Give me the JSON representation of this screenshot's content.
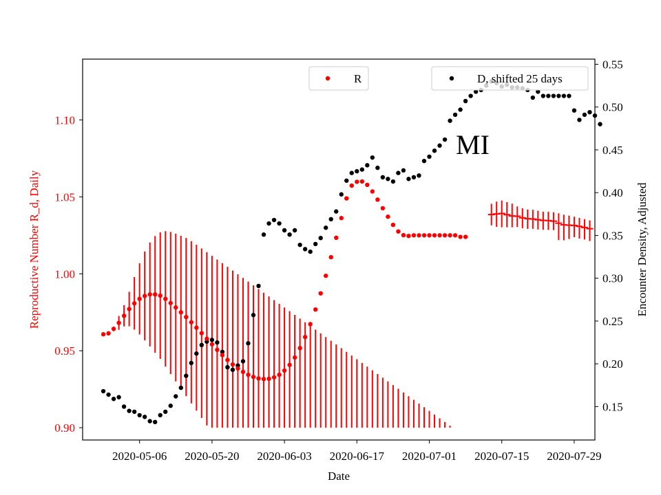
{
  "chart_data": {
    "type": "scatter",
    "annotation": "MI",
    "xlabel": "Date",
    "ylabel_left": "Reproductive Number R_d, Daily",
    "ylabel_right": "Encounter Density, Adjusted",
    "x_start": "2020-04-29",
    "x_range": [
      "2020-04-25",
      "2020-08-02"
    ],
    "ylim_left": [
      0.892,
      1.1395
    ],
    "ylim_right": [
      0.111,
      0.556
    ],
    "x_ticks": [
      "2020-05-06",
      "2020-05-20",
      "2020-06-03",
      "2020-06-17",
      "2020-07-01",
      "2020-07-15",
      "2020-07-29"
    ],
    "yticks_left": [
      "0.90",
      "0.95",
      "1.00",
      "1.05",
      "1.10"
    ],
    "yticks_right": [
      "0.15",
      "0.20",
      "0.25",
      "0.30",
      "0.35",
      "0.40",
      "0.45",
      "0.50",
      "0.55"
    ],
    "legend": [
      {
        "label": "R",
        "position": "top-center"
      },
      {
        "label": "D, shifted 25 days",
        "position": "top-right"
      }
    ],
    "colors": {
      "R": "#ff0000",
      "D": "#000000",
      "axis_left": "#ff0000"
    },
    "series": [
      {
        "name": "R",
        "axis": "left",
        "values": [
          0.9607,
          0.9613,
          0.9642,
          0.9681,
          0.9727,
          0.9771,
          0.9808,
          0.9837,
          0.9856,
          0.9866,
          0.9866,
          0.9858,
          0.9837,
          0.981,
          0.9781,
          0.975,
          0.9719,
          0.9685,
          0.965,
          0.9614,
          0.9578,
          0.9542,
          0.9506,
          0.9472,
          0.944,
          0.9411,
          0.9385,
          0.9363,
          0.9344,
          0.933,
          0.932,
          0.9316,
          0.9318,
          0.9327,
          0.9344,
          0.9371,
          0.9408,
          0.9456,
          0.9517,
          0.9589,
          0.9673,
          0.9768,
          0.9873,
          0.9987,
          1.0108,
          1.0234,
          1.0362,
          1.049,
          1.0573,
          1.0598,
          1.06,
          1.0578,
          1.0535,
          1.0482,
          1.0426,
          1.0371,
          1.0318,
          1.0275,
          1.0251,
          1.0246,
          1.025,
          1.025,
          1.025,
          1.025,
          1.025,
          1.025,
          1.025,
          1.025,
          1.025,
          1.024,
          1.024
        ],
        "err_low": [
          0.9607,
          0.9613,
          0.9627,
          0.9636,
          0.9658,
          0.9659,
          0.9637,
          0.9606,
          0.9567,
          0.9528,
          0.9487,
          0.9447,
          0.9397,
          0.9348,
          0.9301,
          0.9253,
          0.9205,
          0.9158,
          0.9111,
          0.9063,
          0.9015,
          0.9,
          0.9,
          0.9,
          0.9,
          0.9,
          0.9,
          0.9,
          0.9,
          0.9,
          0.9,
          0.9,
          0.9,
          0.9,
          0.9,
          0.9,
          0.9,
          0.9,
          0.9,
          0.9,
          0.9,
          0.9,
          0.9,
          0.9,
          0.9,
          0.9,
          0.9,
          0.9,
          0.9,
          0.9,
          0.9,
          0.9,
          0.9,
          0.9,
          0.9,
          0.9,
          0.9,
          0.9,
          0.9,
          0.9,
          0.9,
          0.9,
          0.9,
          0.9,
          0.9,
          0.9,
          0.9,
          0.9,
          0.9,
          0.9,
          0.9
        ],
        "err_high": [
          0.9607,
          0.9613,
          0.9657,
          0.9726,
          0.9796,
          0.9883,
          0.9979,
          1.0068,
          1.0145,
          1.0204,
          1.0245,
          1.0269,
          1.0277,
          1.0272,
          1.0261,
          1.0247,
          1.0233,
          1.0212,
          1.0189,
          1.0165,
          1.0141,
          1.0117,
          1.0093,
          1.0069,
          1.0045,
          1.0021,
          0.9997,
          0.9973,
          0.9949,
          0.9925,
          0.9901,
          0.9877,
          0.9853,
          0.9829,
          0.9805,
          0.9781,
          0.9757,
          0.9733,
          0.9709,
          0.9685,
          0.9661,
          0.9637,
          0.9613,
          0.9589,
          0.9565,
          0.9541,
          0.9517,
          0.9493,
          0.9469,
          0.9445,
          0.9421,
          0.9397,
          0.9373,
          0.9349,
          0.9325,
          0.9301,
          0.9277,
          0.9253,
          0.9229,
          0.9205,
          0.9181,
          0.9157,
          0.9133,
          0.9109,
          0.9085,
          0.9061,
          0.9037,
          0.9013,
          0.9,
          0.9,
          0.9
        ]
      },
      {
        "name": "D, shifted 25 days",
        "axis": "right",
        "values": [
          0.168,
          0.164,
          0.159,
          0.161,
          0.15,
          0.145,
          0.144,
          0.14,
          0.138,
          0.133,
          0.132,
          0.14,
          0.144,
          0.151,
          0.162,
          0.172,
          0.186,
          0.201,
          0.212,
          0.222,
          0.226,
          0.228,
          0.225,
          0.214,
          0.196,
          0.193,
          0.198,
          0.203,
          0.224,
          0.257,
          0.291,
          0.351,
          0.364,
          0.368,
          0.364,
          0.356,
          0.351,
          0.356,
          0.339,
          0.334,
          0.331,
          0.34,
          0.347,
          0.359,
          0.369,
          0.378,
          0.398,
          0.414,
          0.423,
          0.425,
          0.427,
          0.432,
          0.441,
          0.429,
          0.418,
          0.416,
          0.413,
          0.423,
          0.426,
          0.416,
          0.418,
          0.42,
          0.437,
          0.442,
          0.449,
          0.455,
          0.462,
          0.484,
          0.491,
          0.497,
          0.507,
          0.513,
          0.518,
          0.52,
          0.525,
          0.53,
          0.528,
          0.524,
          0.526,
          0.523,
          0.523,
          0.522,
          0.52,
          0.511,
          0.518,
          0.513,
          0.513,
          0.513,
          0.513,
          0.513,
          0.513,
          0.496,
          0.485,
          0.491,
          0.494,
          0.49,
          0.48
        ]
      }
    ],
    "r_plateau": {
      "values": [
        1.0385,
        1.0389,
        1.0392,
        1.0384,
        1.0376,
        1.0374,
        1.0364,
        1.0358,
        1.0356,
        1.0351,
        1.0347,
        1.0346,
        1.0342,
        1.0329,
        1.0318,
        1.0316,
        1.0314,
        1.0308,
        1.0301,
        1.0293
      ],
      "err_low": [
        1.0315,
        1.0305,
        1.0302,
        1.0302,
        1.0302,
        1.0304,
        1.0296,
        1.0292,
        1.0292,
        1.0288,
        1.0286,
        1.0285,
        1.0284,
        1.0219,
        1.0218,
        1.0226,
        1.0238,
        1.0229,
        1.0223,
        1.0213
      ],
      "err_high": [
        1.0455,
        1.0469,
        1.0476,
        1.0466,
        1.0456,
        1.0438,
        1.0426,
        1.0418,
        1.0416,
        1.041,
        1.0404,
        1.0403,
        1.04,
        1.0393,
        1.0384,
        1.0378,
        1.0371,
        1.0363,
        1.0355,
        1.0347
      ]
    }
  }
}
